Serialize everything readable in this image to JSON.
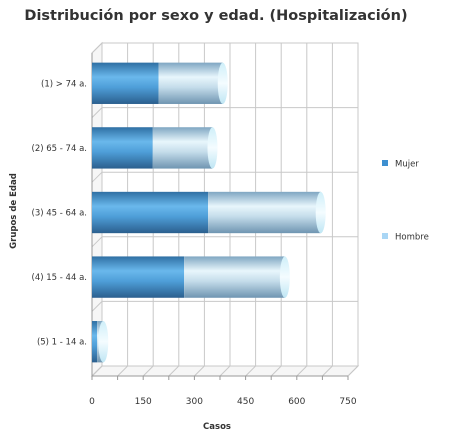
{
  "chart_data": {
    "type": "bar",
    "orientation": "horizontal",
    "stacked": true,
    "title": "Distribución por sexo y edad. (Hospitalización)",
    "xlabel": "Casos",
    "ylabel": "Grupos de Edad",
    "xlim": [
      0,
      750
    ],
    "xticks": [
      "0",
      "150",
      "300",
      "450",
      "600",
      "750"
    ],
    "categories": [
      "(1) > 74 a.",
      "(2) 65 - 74 a.",
      "(3) 45 - 64 a.",
      "(4) 15 - 44 a.",
      "(5) 1 - 14 a."
    ],
    "series": [
      {
        "name": "Mujer",
        "color": "#3d8fd0",
        "values": [
          195,
          178,
          340,
          270,
          15
        ]
      },
      {
        "name": "Hombre",
        "color": "#a9d6f5",
        "values": [
          188,
          175,
          330,
          295,
          18
        ]
      }
    ],
    "legend_position": "right",
    "grid": true
  }
}
